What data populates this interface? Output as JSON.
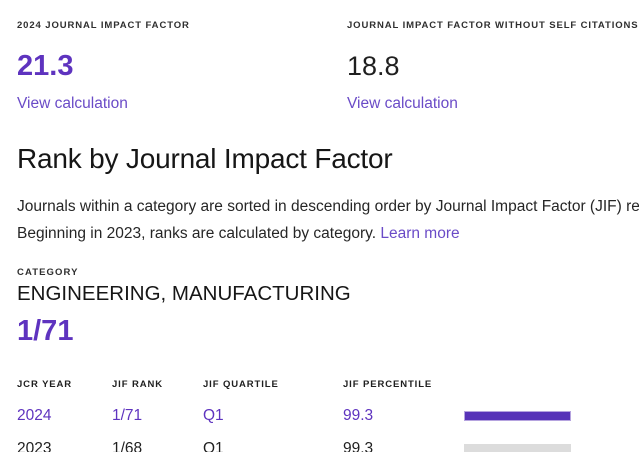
{
  "colors": {
    "accent": "#5E33BF",
    "link": "#6A4BC7",
    "bar_2024": "#5733B8",
    "bar_2024_border": "#B5A3DF",
    "bar_2023": "#DCDCDC",
    "text_dark": "#1F1F1F"
  },
  "metrics": [
    {
      "label": "2024 JOURNAL IMPACT FACTOR",
      "value": "21.3",
      "link": "View calculation"
    },
    {
      "label": "JOURNAL IMPACT FACTOR WITHOUT SELF CITATIONS",
      "value": "18.8",
      "link": "View calculation"
    }
  ],
  "rank_section": {
    "title": "Rank by Journal Impact Factor",
    "description_line1": "Journals within a category are sorted in descending order by Journal Impact Factor (JIF) resulting",
    "description_line2": "Beginning in 2023, ranks are calculated by category.",
    "learn_more_label": "Learn more",
    "category_label": "CATEGORY",
    "category_name": "ENGINEERING, MANUFACTURING",
    "rank": "1/71"
  },
  "table": {
    "headers": [
      "JCR YEAR",
      "JIF RANK",
      "JIF QUARTILE",
      "JIF PERCENTILE"
    ],
    "rows": [
      {
        "year": "2024",
        "rank": "1/71",
        "quartile": "Q1",
        "percentile": "99.3",
        "highlighted": true,
        "bar_percent": 99.3
      },
      {
        "year": "2023",
        "rank": "1/68",
        "quartile": "Q1",
        "percentile": "99.3",
        "highlighted": false,
        "bar_percent": 99.3
      }
    ]
  }
}
